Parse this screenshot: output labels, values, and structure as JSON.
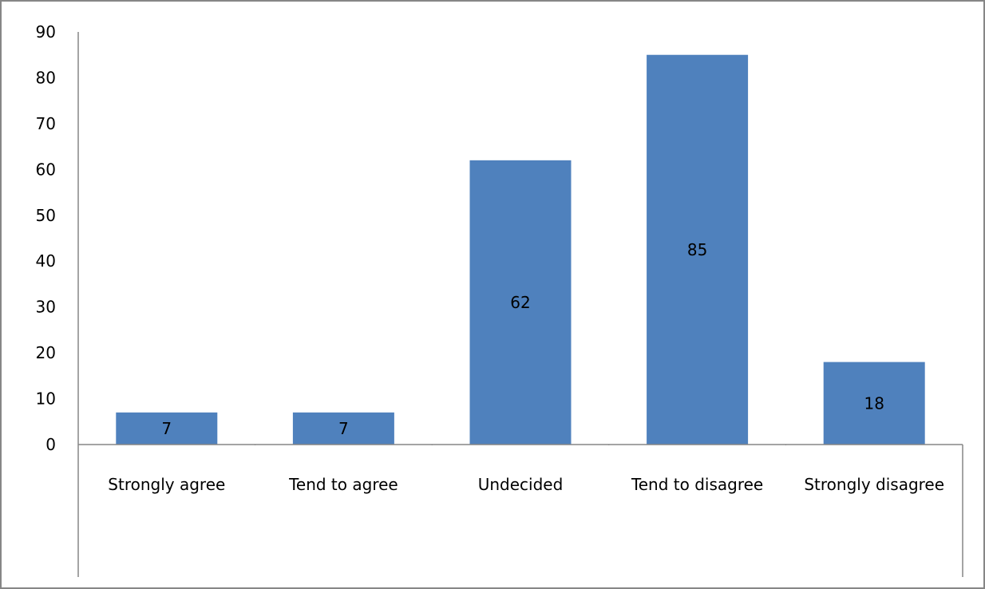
{
  "chart_data": {
    "type": "bar",
    "title": "",
    "xlabel": "",
    "ylabel": "",
    "categories": [
      "Strongly agree",
      "Tend to agree",
      "Undecided",
      "Tend to disagree",
      "Strongly disagree"
    ],
    "values": [
      7,
      7,
      62,
      85,
      18
    ],
    "data_labels": [
      "7",
      "7",
      "62",
      "85",
      "18"
    ],
    "ylim": [
      0,
      90
    ],
    "yticks": [
      0,
      10,
      20,
      30,
      40,
      50,
      60,
      70,
      80,
      90
    ],
    "grid": false,
    "legend": "none",
    "bar_color": "#4f81bd",
    "axis_color": "#868686",
    "frame_color": "#868686"
  }
}
